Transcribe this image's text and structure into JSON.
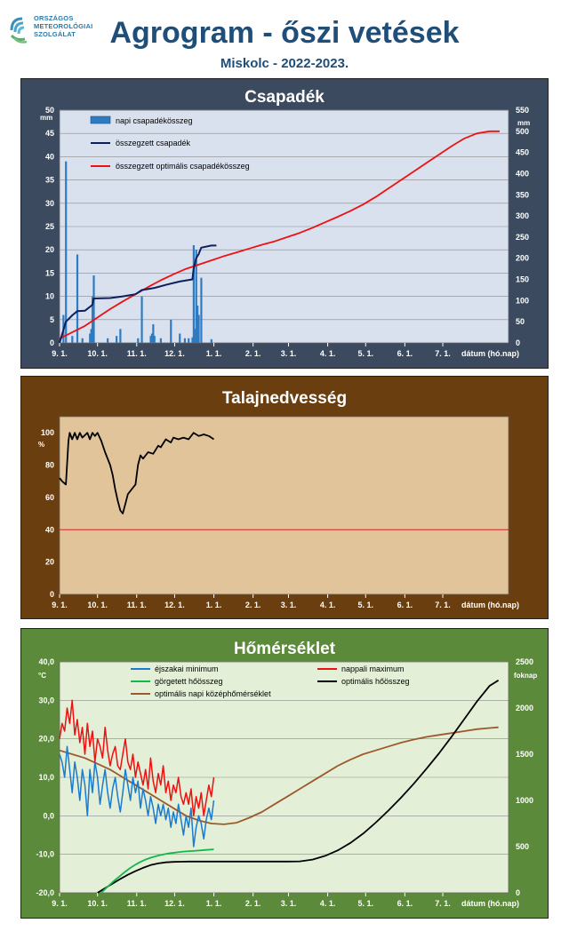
{
  "header": {
    "logo_lines": [
      "ORSZÁGOS",
      "METEOROLÓGIAI",
      "SZOLGÁLAT"
    ],
    "title": "Agrogram - őszi vetések",
    "subtitle": "Miskolc - 2022-2023."
  },
  "x_ticks": [
    "9. 1.",
    "10. 1.",
    "11. 1.",
    "12. 1.",
    "1. 1.",
    "2. 1.",
    "3. 1.",
    "4. 1.",
    "5. 1.",
    "6. 1.",
    "7. 1."
  ],
  "x_axis_label": "dátum (hó.nap)",
  "colors": {
    "precip_panel": "#3b4a5e",
    "precip_plot": "#d9e1ee",
    "soil_panel": "#6b3e0f",
    "soil_plot": "#e2c49a",
    "temp_panel": "#5b8a3a",
    "temp_plot": "#e4efd8"
  },
  "chart_data": [
    {
      "type": "bar",
      "title": "Csapadék",
      "ylabel_left": "mm",
      "ylabel_right": "mm",
      "ylim_left": [
        0,
        50
      ],
      "ylim_right": [
        0,
        550
      ],
      "yticks_left": [
        "0",
        "5",
        "10",
        "15",
        "20",
        "25",
        "30",
        "35",
        "40",
        "45",
        "50"
      ],
      "yticks_right": [
        "0",
        "50",
        "100",
        "150",
        "200",
        "250",
        "300",
        "350",
        "400",
        "450",
        "500",
        "550"
      ],
      "legend": [
        "napi csapadékösszeg",
        "összegzett csapadék",
        "összegzett optimális  csapadékösszeg"
      ],
      "grid": true,
      "daily_precip": [
        [
          3,
          6
        ],
        [
          5,
          39
        ],
        [
          10,
          1.5
        ],
        [
          14,
          19
        ],
        [
          18,
          1
        ],
        [
          24,
          2
        ],
        [
          25,
          3
        ],
        [
          26,
          10
        ],
        [
          27,
          14.5
        ],
        [
          38,
          1
        ],
        [
          45,
          1.5
        ],
        [
          48,
          3
        ],
        [
          62,
          1
        ],
        [
          65,
          10
        ],
        [
          72,
          1.5
        ],
        [
          73,
          2
        ],
        [
          74,
          4
        ],
        [
          75,
          1.5
        ],
        [
          80,
          1
        ],
        [
          88,
          5
        ],
        [
          95,
          2
        ],
        [
          99,
          1
        ],
        [
          102,
          1
        ],
        [
          105,
          1.2
        ],
        [
          106,
          21
        ],
        [
          107,
          3
        ],
        [
          108,
          20
        ],
        [
          109,
          8
        ],
        [
          110,
          6
        ],
        [
          112,
          14
        ],
        [
          120,
          0.8
        ]
      ],
      "cumulative_precip": [
        [
          0,
          0
        ],
        [
          5,
          50
        ],
        [
          10,
          65
        ],
        [
          14,
          75
        ],
        [
          20,
          76
        ],
        [
          26,
          90
        ],
        [
          27,
          105
        ],
        [
          40,
          106
        ],
        [
          50,
          110
        ],
        [
          60,
          115
        ],
        [
          65,
          125
        ],
        [
          75,
          130
        ],
        [
          85,
          138
        ],
        [
          95,
          145
        ],
        [
          105,
          150
        ],
        [
          106,
          175
        ],
        [
          108,
          200
        ],
        [
          110,
          210
        ],
        [
          112,
          225
        ],
        [
          120,
          230
        ],
        [
          124,
          230
        ]
      ],
      "optimal_cumulative": [
        [
          0,
          10
        ],
        [
          10,
          25
        ],
        [
          20,
          40
        ],
        [
          30,
          60
        ],
        [
          40,
          80
        ],
        [
          50,
          98
        ],
        [
          60,
          115
        ],
        [
          70,
          132
        ],
        [
          80,
          148
        ],
        [
          90,
          162
        ],
        [
          100,
          175
        ],
        [
          110,
          185
        ],
        [
          120,
          195
        ],
        [
          130,
          205
        ],
        [
          140,
          214
        ],
        [
          150,
          223
        ],
        [
          160,
          232
        ],
        [
          170,
          240
        ],
        [
          180,
          250
        ],
        [
          190,
          260
        ],
        [
          200,
          272
        ],
        [
          210,
          285
        ],
        [
          220,
          298
        ],
        [
          230,
          312
        ],
        [
          240,
          327
        ],
        [
          250,
          345
        ],
        [
          260,
          365
        ],
        [
          270,
          385
        ],
        [
          280,
          405
        ],
        [
          290,
          425
        ],
        [
          300,
          445
        ],
        [
          310,
          465
        ],
        [
          320,
          483
        ],
        [
          330,
          495
        ],
        [
          340,
          500
        ],
        [
          348,
          500
        ]
      ]
    },
    {
      "type": "line",
      "title": "Talajnedvesség",
      "ylabel": "%",
      "ylim": [
        0,
        110
      ],
      "yticks": [
        "0",
        "20",
        "40",
        "60",
        "80",
        "100"
      ],
      "threshold": 40,
      "grid": false,
      "soil_moisture": [
        [
          0,
          72
        ],
        [
          2,
          70
        ],
        [
          5,
          68
        ],
        [
          7,
          95
        ],
        [
          8,
          100
        ],
        [
          10,
          96
        ],
        [
          12,
          100
        ],
        [
          14,
          96
        ],
        [
          16,
          100
        ],
        [
          18,
          97
        ],
        [
          22,
          100
        ],
        [
          24,
          96
        ],
        [
          26,
          100
        ],
        [
          28,
          98
        ],
        [
          30,
          100
        ],
        [
          33,
          95
        ],
        [
          36,
          88
        ],
        [
          40,
          80
        ],
        [
          42,
          74
        ],
        [
          44,
          65
        ],
        [
          46,
          58
        ],
        [
          48,
          52
        ],
        [
          50,
          50
        ],
        [
          52,
          56
        ],
        [
          54,
          62
        ],
        [
          58,
          66
        ],
        [
          60,
          68
        ],
        [
          62,
          80
        ],
        [
          64,
          86
        ],
        [
          66,
          84
        ],
        [
          70,
          88
        ],
        [
          74,
          87
        ],
        [
          78,
          92
        ],
        [
          80,
          91
        ],
        [
          84,
          96
        ],
        [
          88,
          94
        ],
        [
          90,
          97
        ],
        [
          94,
          96
        ],
        [
          98,
          97
        ],
        [
          102,
          96
        ],
        [
          106,
          100
        ],
        [
          110,
          98
        ],
        [
          114,
          99
        ],
        [
          118,
          98
        ],
        [
          122,
          96
        ]
      ]
    },
    {
      "type": "line",
      "title": "Hőmérséklet",
      "ylabel_left": "°C",
      "ylabel_right": "foknap",
      "ylim_left": [
        -20,
        40
      ],
      "ylim_right": [
        0,
        2500
      ],
      "yticks_left": [
        "-20,0",
        "-10,0",
        "0,0",
        "10,0",
        "20,0",
        "30,0",
        "40,0"
      ],
      "yticks_right": [
        "0",
        "500",
        "1000",
        "1500",
        "2000",
        "2500"
      ],
      "legend": [
        "éjszakai minimum",
        "nappali maximum",
        "görgetett hőösszeg",
        "optimális hőösszeg",
        "optimális napi középhőmérséklet"
      ],
      "grid": true,
      "night_min": [
        [
          0,
          16
        ],
        [
          2,
          14
        ],
        [
          4,
          10
        ],
        [
          6,
          18
        ],
        [
          8,
          12
        ],
        [
          10,
          6
        ],
        [
          12,
          14
        ],
        [
          14,
          10
        ],
        [
          16,
          4
        ],
        [
          18,
          12
        ],
        [
          20,
          8
        ],
        [
          22,
          0
        ],
        [
          24,
          12
        ],
        [
          26,
          6
        ],
        [
          28,
          14
        ],
        [
          30,
          10
        ],
        [
          32,
          3
        ],
        [
          34,
          8
        ],
        [
          36,
          12
        ],
        [
          38,
          6
        ],
        [
          40,
          2
        ],
        [
          42,
          7
        ],
        [
          44,
          10
        ],
        [
          46,
          5
        ],
        [
          48,
          1
        ],
        [
          50,
          6
        ],
        [
          52,
          12
        ],
        [
          54,
          8
        ],
        [
          56,
          4
        ],
        [
          58,
          10
        ],
        [
          60,
          6
        ],
        [
          62,
          9
        ],
        [
          64,
          2
        ],
        [
          66,
          7
        ],
        [
          68,
          4
        ],
        [
          70,
          0
        ],
        [
          72,
          5
        ],
        [
          74,
          2
        ],
        [
          76,
          -2
        ],
        [
          78,
          3
        ],
        [
          80,
          0
        ],
        [
          82,
          3
        ],
        [
          84,
          -1
        ],
        [
          86,
          2
        ],
        [
          88,
          -3
        ],
        [
          90,
          1
        ],
        [
          92,
          -2
        ],
        [
          94,
          3
        ],
        [
          96,
          -1
        ],
        [
          98,
          -5
        ],
        [
          100,
          0
        ],
        [
          102,
          -3
        ],
        [
          104,
          2
        ],
        [
          106,
          -8
        ],
        [
          108,
          -3
        ],
        [
          110,
          0
        ],
        [
          112,
          -2
        ],
        [
          114,
          -6
        ],
        [
          116,
          -1
        ],
        [
          118,
          2
        ],
        [
          120,
          -1
        ],
        [
          122,
          4
        ]
      ],
      "day_max": [
        [
          0,
          20
        ],
        [
          2,
          24
        ],
        [
          4,
          22
        ],
        [
          6,
          28
        ],
        [
          8,
          24
        ],
        [
          10,
          30
        ],
        [
          12,
          21
        ],
        [
          14,
          25
        ],
        [
          16,
          19
        ],
        [
          18,
          23
        ],
        [
          20,
          16
        ],
        [
          22,
          24
        ],
        [
          24,
          18
        ],
        [
          26,
          22
        ],
        [
          28,
          14
        ],
        [
          30,
          20
        ],
        [
          32,
          18
        ],
        [
          34,
          15
        ],
        [
          36,
          23
        ],
        [
          38,
          17
        ],
        [
          40,
          13
        ],
        [
          42,
          16
        ],
        [
          44,
          18
        ],
        [
          46,
          13
        ],
        [
          48,
          12
        ],
        [
          50,
          16
        ],
        [
          52,
          20
        ],
        [
          54,
          14
        ],
        [
          56,
          12
        ],
        [
          58,
          16
        ],
        [
          60,
          10
        ],
        [
          62,
          14
        ],
        [
          64,
          11
        ],
        [
          66,
          8
        ],
        [
          68,
          12
        ],
        [
          70,
          7
        ],
        [
          72,
          15
        ],
        [
          74,
          9
        ],
        [
          76,
          6
        ],
        [
          78,
          11
        ],
        [
          80,
          8
        ],
        [
          82,
          13
        ],
        [
          84,
          6
        ],
        [
          86,
          9
        ],
        [
          88,
          4
        ],
        [
          90,
          8
        ],
        [
          92,
          6
        ],
        [
          94,
          10
        ],
        [
          96,
          5
        ],
        [
          98,
          3
        ],
        [
          100,
          6
        ],
        [
          102,
          3
        ],
        [
          104,
          7
        ],
        [
          106,
          0
        ],
        [
          108,
          5
        ],
        [
          110,
          2
        ],
        [
          112,
          6
        ],
        [
          114,
          0
        ],
        [
          116,
          4
        ],
        [
          118,
          8
        ],
        [
          120,
          5
        ],
        [
          122,
          10
        ]
      ],
      "rolling_heat_sum": [
        [
          33,
          0
        ],
        [
          36,
          40
        ],
        [
          40,
          90
        ],
        [
          44,
          140
        ],
        [
          48,
          185
        ],
        [
          52,
          230
        ],
        [
          56,
          270
        ],
        [
          60,
          305
        ],
        [
          64,
          335
        ],
        [
          68,
          360
        ],
        [
          72,
          380
        ],
        [
          76,
          395
        ],
        [
          80,
          410
        ],
        [
          84,
          420
        ],
        [
          88,
          430
        ],
        [
          92,
          437
        ],
        [
          96,
          443
        ],
        [
          100,
          448
        ],
        [
          104,
          452
        ],
        [
          108,
          456
        ],
        [
          112,
          460
        ],
        [
          116,
          464
        ],
        [
          120,
          468
        ],
        [
          122,
          470
        ]
      ],
      "optimal_heat_sum": [
        [
          30,
          0
        ],
        [
          36,
          50
        ],
        [
          42,
          100
        ],
        [
          48,
          150
        ],
        [
          54,
          195
        ],
        [
          60,
          235
        ],
        [
          66,
          270
        ],
        [
          72,
          300
        ],
        [
          78,
          318
        ],
        [
          84,
          330
        ],
        [
          90,
          335
        ],
        [
          96,
          337
        ],
        [
          102,
          338
        ],
        [
          120,
          338
        ],
        [
          150,
          338
        ],
        [
          180,
          338
        ],
        [
          190,
          340
        ],
        [
          200,
          360
        ],
        [
          210,
          400
        ],
        [
          220,
          460
        ],
        [
          230,
          540
        ],
        [
          240,
          640
        ],
        [
          250,
          760
        ],
        [
          260,
          890
        ],
        [
          270,
          1030
        ],
        [
          280,
          1180
        ],
        [
          290,
          1340
        ],
        [
          300,
          1510
        ],
        [
          310,
          1690
        ],
        [
          320,
          1880
        ],
        [
          330,
          2070
        ],
        [
          340,
          2240
        ],
        [
          347,
          2300
        ]
      ],
      "optimal_daily_mean": [
        [
          0,
          17
        ],
        [
          10,
          16
        ],
        [
          20,
          15
        ],
        [
          30,
          13.5
        ],
        [
          40,
          12
        ],
        [
          50,
          10
        ],
        [
          60,
          8
        ],
        [
          70,
          6
        ],
        [
          80,
          4
        ],
        [
          90,
          2
        ],
        [
          100,
          0
        ],
        [
          110,
          -1.2
        ],
        [
          120,
          -2
        ],
        [
          130,
          -2.2
        ],
        [
          140,
          -1.8
        ],
        [
          150,
          -0.5
        ],
        [
          160,
          1
        ],
        [
          170,
          3
        ],
        [
          180,
          5
        ],
        [
          190,
          7
        ],
        [
          200,
          9
        ],
        [
          210,
          11
        ],
        [
          220,
          13
        ],
        [
          230,
          14.6
        ],
        [
          240,
          16
        ],
        [
          250,
          17
        ],
        [
          260,
          18
        ],
        [
          270,
          19
        ],
        [
          280,
          19.8
        ],
        [
          290,
          20.5
        ],
        [
          300,
          21
        ],
        [
          310,
          21.5
        ],
        [
          320,
          22
        ],
        [
          330,
          22.5
        ],
        [
          340,
          22.8
        ],
        [
          347,
          23
        ]
      ]
    }
  ]
}
